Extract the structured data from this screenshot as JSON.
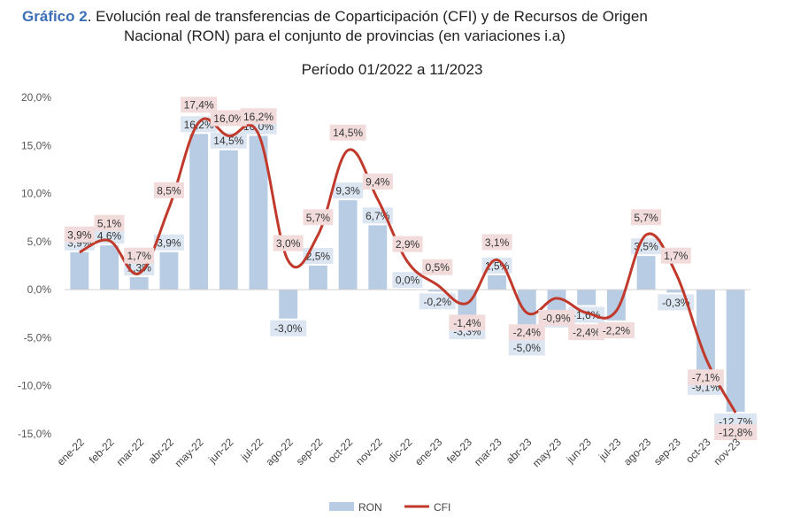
{
  "header": {
    "label": "Gráfico 2",
    "title_line1": ". Evolución real de transferencias de Coparticipación (CFI) y de Recursos de Origen",
    "title_line2": "Nacional (RON) para el conjunto de provincias (en variaciones i.a)",
    "period": "Período 01/2022 a 11/2023"
  },
  "chart_data": {
    "type": "bar",
    "categories": [
      "ene-22",
      "feb-22",
      "mar-22",
      "abr-22",
      "may-22",
      "jun-22",
      "jul-22",
      "ago-22",
      "sep-22",
      "oct-22",
      "nov-22",
      "dic-22",
      "ene-23",
      "feb-23",
      "mar-23",
      "abr-23",
      "may-23",
      "jun-23",
      "jul-23",
      "ago-23",
      "sep-23",
      "oct-23",
      "nov-23"
    ],
    "series": [
      {
        "name": "RON",
        "kind": "bar",
        "color": "#b8cce4",
        "values": [
          3.9,
          4.6,
          1.3,
          3.9,
          16.2,
          14.5,
          16.0,
          -3.0,
          2.5,
          9.3,
          6.7,
          0.0,
          -0.2,
          -3.3,
          1.5,
          -5.0,
          -2.1,
          -1.6,
          -3.2,
          3.5,
          -0.3,
          -9.1,
          -12.7
        ],
        "labels": [
          "3,9%",
          "4,6%",
          "1,3%",
          "3,9%",
          "16,2%",
          "14,5%",
          "16,0%",
          "-3,0%",
          "2,5%",
          "9,3%",
          "6,7%",
          "0,0%",
          "-0,2%",
          "-3,3%",
          "1,5%",
          "-5,0%",
          "-2,1%",
          "-1,6%",
          "-3,2%",
          "3,5%",
          "-0,3%",
          "-9,1%",
          "-12,7%"
        ]
      },
      {
        "name": "CFI",
        "kind": "line",
        "color": "#c0392b",
        "values": [
          3.9,
          5.1,
          1.7,
          8.5,
          17.4,
          16.0,
          16.2,
          3.0,
          5.7,
          14.5,
          9.4,
          2.9,
          0.5,
          -1.4,
          3.1,
          -2.4,
          -0.9,
          -2.4,
          -2.2,
          5.7,
          1.7,
          -7.1,
          -12.8
        ],
        "labels": [
          "3,9%",
          "5,1%",
          "1,7%",
          "8,5%",
          "17,4%",
          "16,0%",
          "16,2%",
          "3,0%",
          "5,7%",
          "14,5%",
          "9,4%",
          "2,9%",
          "0,5%",
          "-1,4%",
          "3,1%",
          "-2,4%",
          "-0,9%",
          "-2,4%",
          "-2,2%",
          "5,7%",
          "1,7%",
          "-7,1%",
          "-12,8%"
        ]
      }
    ],
    "ylim": [
      -15,
      20
    ],
    "yticks": [
      "-15,0%",
      "-10,0%",
      "-5,0%",
      "0,0%",
      "5,0%",
      "10,0%",
      "15,0%",
      "20,0%"
    ],
    "ytick_values": [
      -15,
      -10,
      -5,
      0,
      5,
      10,
      15,
      20
    ],
    "legend_position": "bottom",
    "grid": false
  }
}
